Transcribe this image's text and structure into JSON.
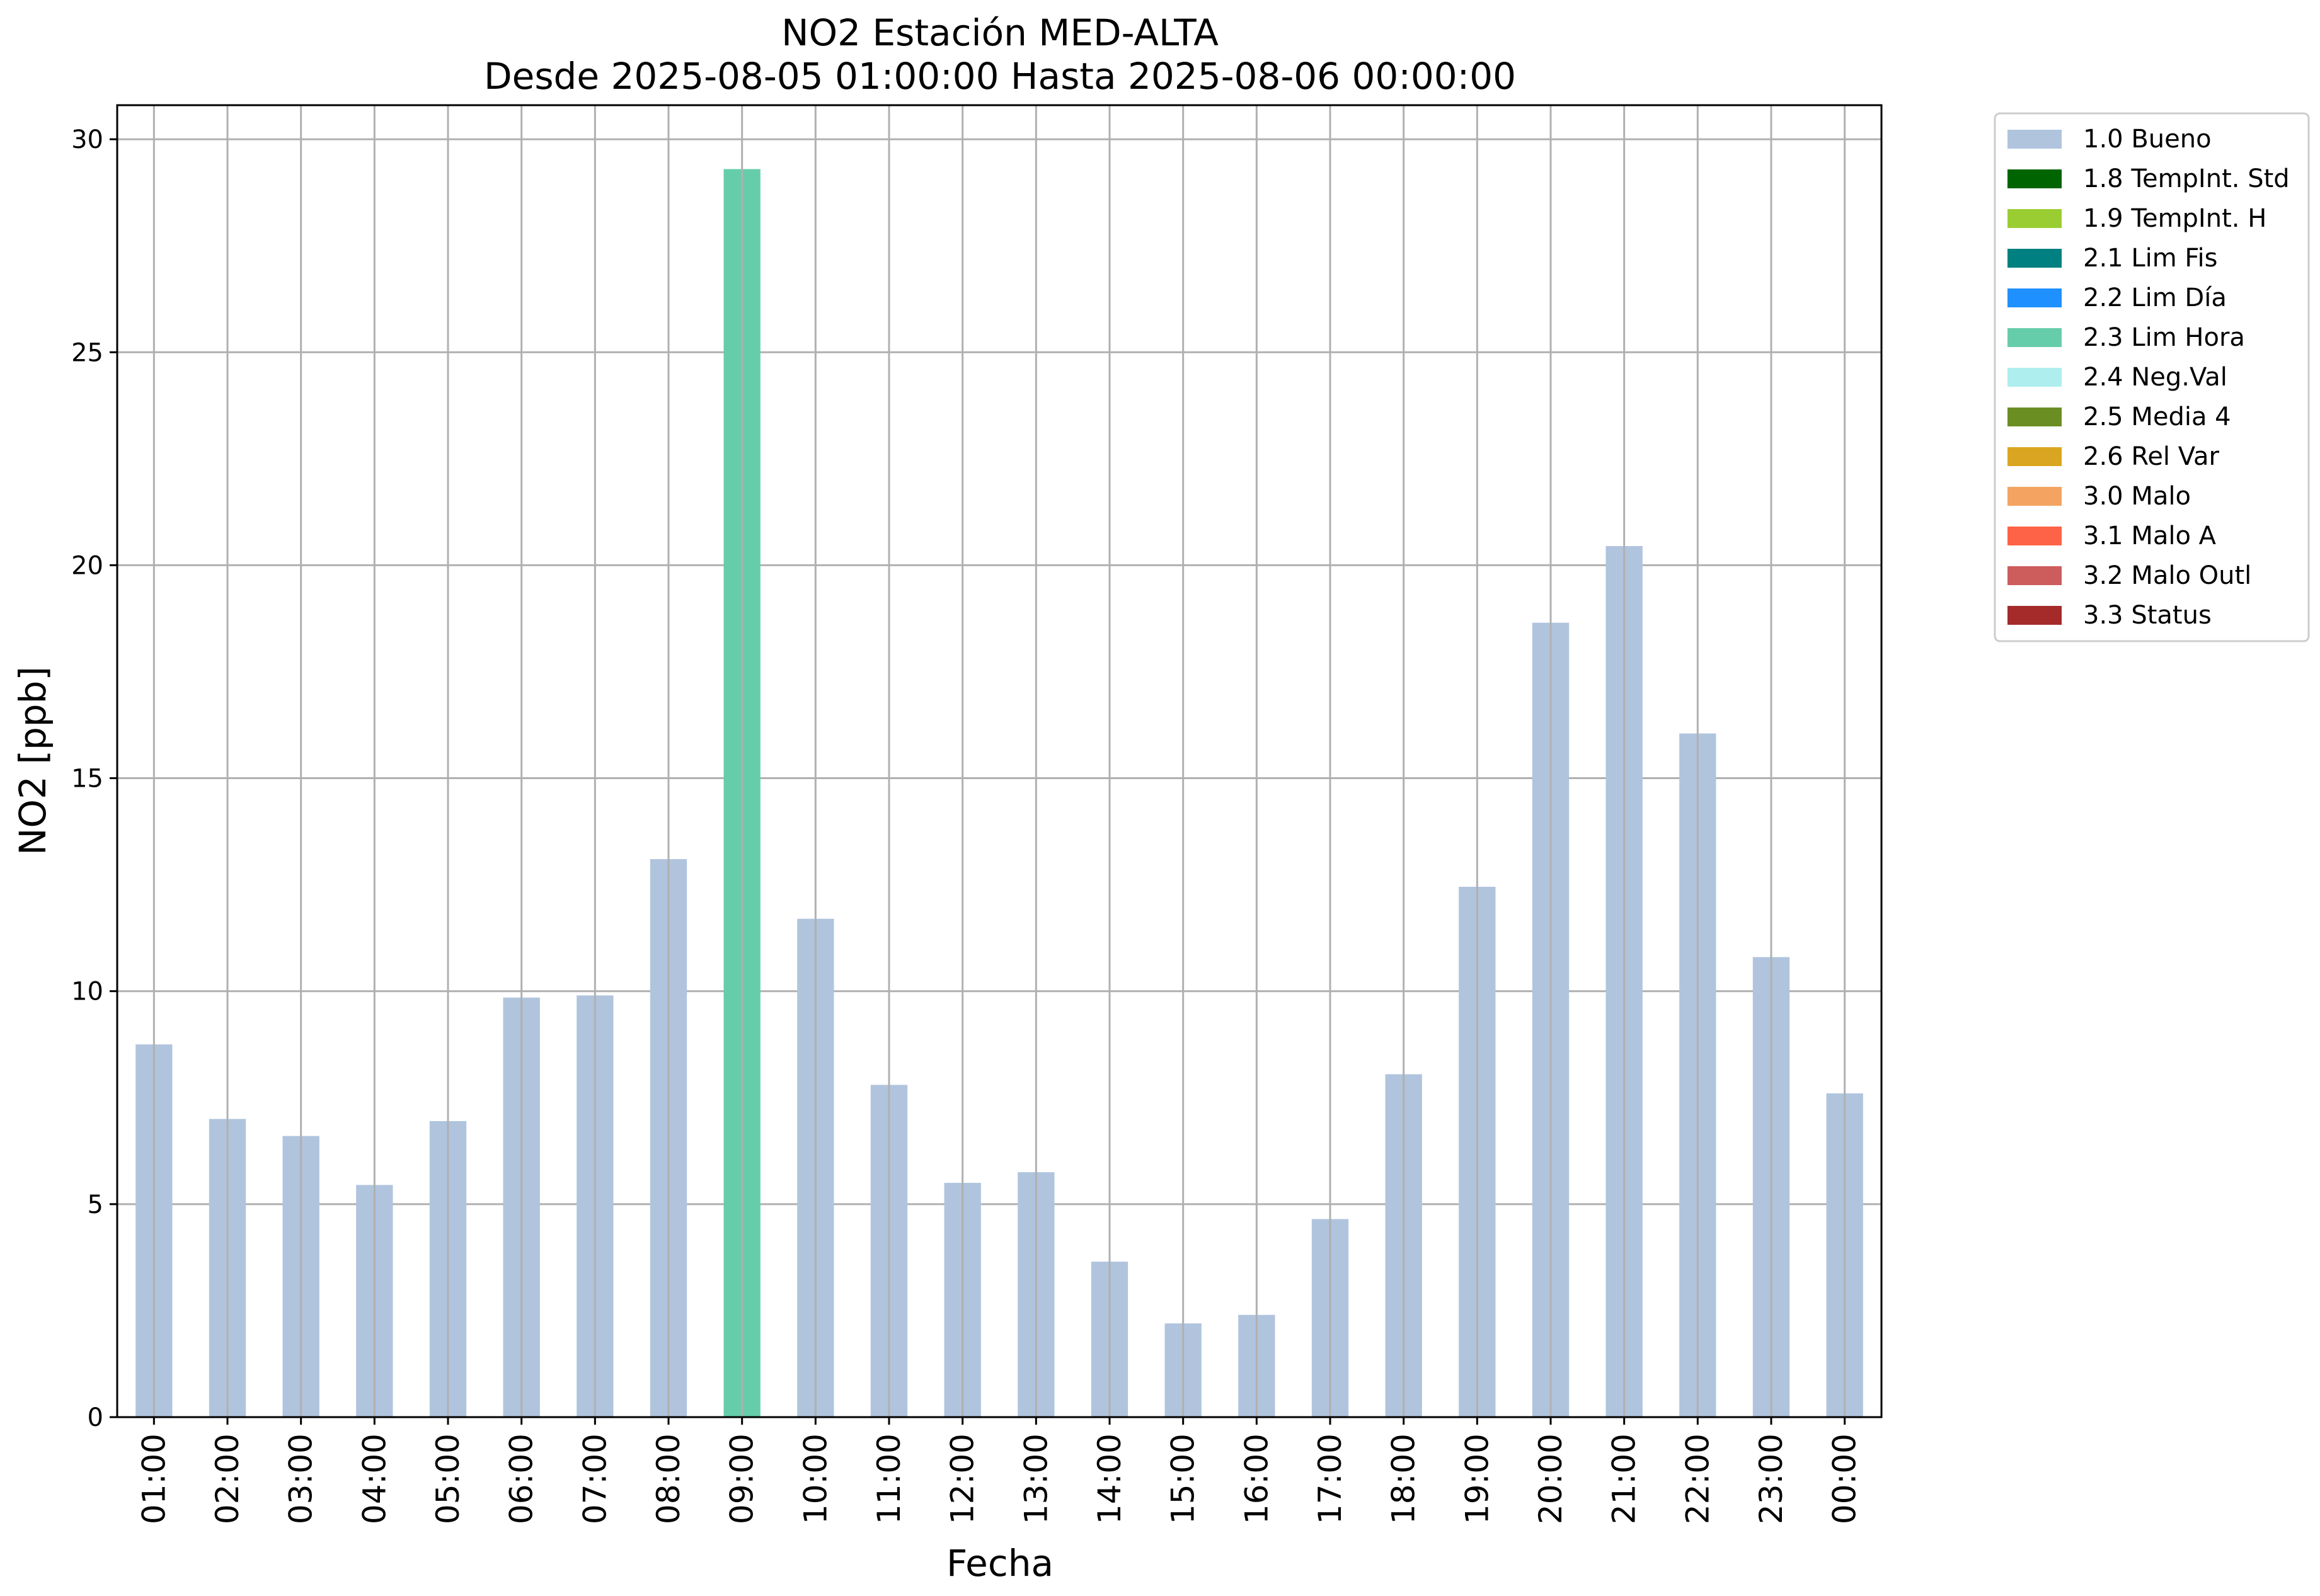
{
  "chart_data": {
    "type": "bar",
    "title": "NO2 Estación MED-ALTA",
    "subtitle": "Desde 2025-08-05 01:00:00 Hasta 2025-08-06 00:00:00",
    "xlabel": "Fecha",
    "ylabel": "NO2 [ppb]",
    "ylim": [
      0,
      30.8
    ],
    "yticks": [
      0,
      5,
      10,
      15,
      20,
      25,
      30
    ],
    "grid": true,
    "legend_position": "outside-top-right",
    "categories": [
      "01:00",
      "02:00",
      "03:00",
      "04:00",
      "05:00",
      "06:00",
      "07:00",
      "08:00",
      "09:00",
      "10:00",
      "11:00",
      "12:00",
      "13:00",
      "14:00",
      "15:00",
      "16:00",
      "17:00",
      "18:00",
      "19:00",
      "20:00",
      "21:00",
      "22:00",
      "23:00",
      "00:00"
    ],
    "values": [
      8.75,
      7.0,
      6.6,
      5.45,
      6.95,
      9.85,
      9.9,
      13.1,
      29.3,
      11.7,
      7.8,
      5.5,
      5.75,
      3.65,
      2.2,
      2.4,
      4.65,
      8.05,
      12.45,
      18.65,
      20.45,
      16.05,
      10.8,
      7.6
    ],
    "flags": [
      "1.0 Bueno",
      "1.0 Bueno",
      "1.0 Bueno",
      "1.0 Bueno",
      "1.0 Bueno",
      "1.0 Bueno",
      "1.0 Bueno",
      "1.0 Bueno",
      "2.3 Lim Hora",
      "1.0 Bueno",
      "1.0 Bueno",
      "1.0 Bueno",
      "1.0 Bueno",
      "1.0 Bueno",
      "1.0 Bueno",
      "1.0 Bueno",
      "1.0 Bueno",
      "1.0 Bueno",
      "1.0 Bueno",
      "1.0 Bueno",
      "1.0 Bueno",
      "1.0 Bueno",
      "1.0 Bueno",
      "1.0 Bueno"
    ],
    "legend": [
      {
        "name": "1.0 Bueno",
        "color": "#b0c4de"
      },
      {
        "name": "1.8 TempInt. Std",
        "color": "#006400"
      },
      {
        "name": "1.9 TempInt. H",
        "color": "#9acd32"
      },
      {
        "name": "2.1 Lim Fis",
        "color": "#008080"
      },
      {
        "name": "2.2 Lim Día",
        "color": "#1e90ff"
      },
      {
        "name": "2.3 Lim Hora",
        "color": "#66cdaa"
      },
      {
        "name": "2.4 Neg.Val",
        "color": "#afeeee"
      },
      {
        "name": "2.5 Media 4",
        "color": "#6b8e23"
      },
      {
        "name": "2.6 Rel Var",
        "color": "#daa520"
      },
      {
        "name": "3.0 Malo",
        "color": "#f4a460"
      },
      {
        "name": "3.1 Malo A",
        "color": "#ff6347"
      },
      {
        "name": "3.2 Malo Outl",
        "color": "#cd5c5c"
      },
      {
        "name": "3.3 Status",
        "color": "#a52a2a"
      }
    ]
  }
}
